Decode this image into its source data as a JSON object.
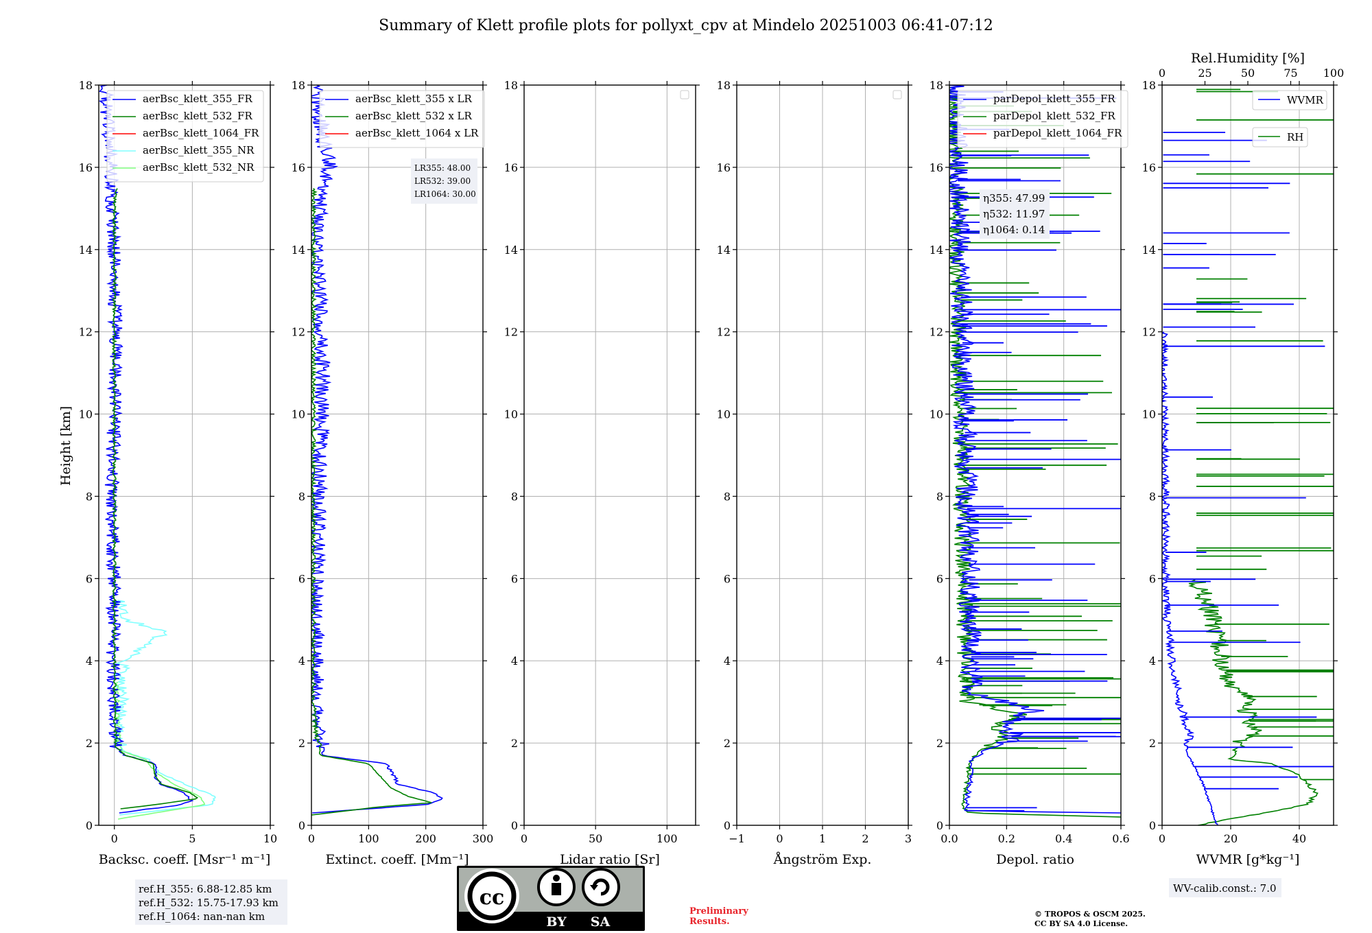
{
  "title": "Summary of Klett profile plots for pollyxt_cpv at Mindelo 20251003 06:41-07:12",
  "y_label": "Height [km]",
  "y_ticks": [
    "0",
    "2",
    "4",
    "6",
    "8",
    "10",
    "12",
    "14",
    "16",
    "18"
  ],
  "colors": {
    "c355": "#0000ff",
    "c532": "#008000",
    "c1064": "#ff0000",
    "c355nr": "#80ffff",
    "c532nr": "#80ff80",
    "wvmr": "#0000ff",
    "rh": "#008000"
  },
  "chart_data": [
    {
      "type": "line",
      "id": "backscatter",
      "xlabel": "Backsc. coeff. [Msr⁻¹ m⁻¹]",
      "xlim": [
        -1,
        10
      ],
      "ylim": [
        0,
        18
      ],
      "x_ticks": [
        0,
        5,
        10
      ],
      "legend": [
        "aerBsc_klett_355_FR",
        "aerBsc_klett_532_FR",
        "aerBsc_klett_1064_FR",
        "aerBsc_klett_355_NR",
        "aerBsc_klett_532_NR"
      ],
      "series": [
        {
          "name": "aerBsc_klett_355_NR",
          "color": "c355nr",
          "profile": [
            [
              0.25,
              0.3
            ],
            [
              0.5,
              6.2
            ],
            [
              0.7,
              6.5
            ],
            [
              1.0,
              4.5
            ],
            [
              1.3,
              2.8
            ],
            [
              1.6,
              2.2
            ],
            [
              1.8,
              0.6
            ],
            [
              2.0,
              0.4
            ],
            [
              2.5,
              0.3
            ],
            [
              3.0,
              0.5
            ],
            [
              3.5,
              0.4
            ],
            [
              4.0,
              0.6
            ],
            [
              4.5,
              2.5
            ],
            [
              4.7,
              3.2
            ],
            [
              5.0,
              0.8
            ],
            [
              5.5,
              0.3
            ]
          ],
          "noise": 0.4
        },
        {
          "name": "aerBsc_klett_532_NR",
          "color": "c532nr",
          "profile": [
            [
              0.15,
              0.2
            ],
            [
              0.5,
              5.8
            ],
            [
              0.7,
              5.5
            ],
            [
              1.0,
              3.8
            ],
            [
              1.3,
              2.6
            ],
            [
              1.6,
              2.0
            ],
            [
              1.8,
              0.5
            ],
            [
              2.0,
              0.3
            ],
            [
              2.5,
              0.2
            ],
            [
              3.0,
              0.2
            ],
            [
              3.5,
              0.2
            ]
          ],
          "noise": 0.15
        },
        {
          "name": "aerBsc_klett_355_FR",
          "color": "c355",
          "profile": [
            [
              0.3,
              0.3
            ],
            [
              0.5,
              4.3
            ],
            [
              0.6,
              4.9
            ],
            [
              0.8,
              4.4
            ],
            [
              1.0,
              3.0
            ],
            [
              1.2,
              2.6
            ],
            [
              1.5,
              2.6
            ],
            [
              1.7,
              0.7
            ],
            [
              1.9,
              0.1
            ],
            [
              2.5,
              0.1
            ],
            [
              4.0,
              -0.1
            ],
            [
              6.0,
              0.0
            ],
            [
              8.0,
              -0.2
            ],
            [
              10.0,
              0.0
            ],
            [
              12.0,
              0.1
            ],
            [
              14.0,
              0.0
            ],
            [
              16.0,
              -0.2
            ],
            [
              17.5,
              -0.5
            ],
            [
              18.0,
              -0.5
            ]
          ],
          "noise": 0.45
        },
        {
          "name": "aerBsc_klett_532_FR",
          "color": "c532",
          "profile": [
            [
              0.4,
              0.4
            ],
            [
              0.5,
              2.6
            ],
            [
              0.65,
              5.4
            ],
            [
              0.8,
              4.8
            ],
            [
              1.0,
              3.0
            ],
            [
              1.2,
              2.6
            ],
            [
              1.5,
              2.5
            ],
            [
              1.7,
              0.7
            ],
            [
              1.9,
              0.1
            ],
            [
              2.5,
              0.05
            ],
            [
              4.0,
              0.0
            ],
            [
              8.0,
              0.0
            ],
            [
              12.0,
              0.0
            ],
            [
              15.0,
              0.0
            ],
            [
              15.5,
              0.1
            ]
          ],
          "noise": 0.1
        }
      ],
      "annotation": [
        "ref.H_355: 6.88-12.85 km",
        "ref.H_532: 15.75-17.93 km",
        "ref.H_1064: nan-nan km"
      ]
    },
    {
      "type": "line",
      "id": "extinction",
      "xlabel": "Extinct. coeff. [Mm⁻¹]",
      "xlim": [
        0,
        300
      ],
      "ylim": [
        0,
        18
      ],
      "x_ticks": [
        0,
        100,
        200,
        300
      ],
      "legend": [
        "aerBsc_klett_355 x LR",
        "aerBsc_klett_532 x LR",
        "aerBsc_klett_1064 x LR"
      ],
      "series": [
        {
          "name": "aerBsc_klett_355 x LR",
          "color": "c355",
          "profile": [
            [
              0.3,
              0
            ],
            [
              0.5,
              200
            ],
            [
              0.65,
              230
            ],
            [
              0.8,
              210
            ],
            [
              1.0,
              150
            ],
            [
              1.2,
              145
            ],
            [
              1.5,
              130
            ],
            [
              1.7,
              20
            ],
            [
              1.9,
              20
            ],
            [
              2.2,
              10
            ],
            [
              3.0,
              8
            ],
            [
              6.0,
              8
            ],
            [
              9.0,
              15
            ],
            [
              11.0,
              20
            ],
            [
              12.5,
              15
            ],
            [
              14.5,
              8
            ],
            [
              16.0,
              30
            ],
            [
              17.5,
              10
            ],
            [
              18.0,
              8
            ]
          ],
          "noise": 14
        },
        {
          "name": "aerBsc_klett_532 x LR",
          "color": "c532",
          "profile": [
            [
              0.25,
              0
            ],
            [
              0.45,
              120
            ],
            [
              0.55,
              210
            ],
            [
              0.7,
              170
            ],
            [
              0.9,
              140
            ],
            [
              1.2,
              120
            ],
            [
              1.5,
              100
            ],
            [
              1.7,
              15
            ],
            [
              1.9,
              15
            ],
            [
              2.2,
              8
            ],
            [
              3.0,
              3
            ],
            [
              8.0,
              3
            ],
            [
              12.0,
              3
            ],
            [
              15.0,
              3
            ],
            [
              15.5,
              5
            ]
          ],
          "noise": 4
        }
      ],
      "annotation": [
        "LR355: 48.00",
        "LR532: 39.00",
        "LR1064: 30.00"
      ]
    },
    {
      "type": "line",
      "id": "lidar-ratio",
      "xlabel": "Lidar ratio [Sr]",
      "xlim": [
        0,
        120
      ],
      "ylim": [
        0,
        18
      ],
      "x_ticks": [
        0,
        50,
        100
      ],
      "legend": [],
      "series": []
    },
    {
      "type": "line",
      "id": "angstrom",
      "xlabel": "Ångström Exp.",
      "xlim": [
        -1,
        3
      ],
      "ylim": [
        0,
        18
      ],
      "x_ticks": [
        -1,
        0,
        1,
        2,
        3
      ],
      "legend": [],
      "series": []
    },
    {
      "type": "line",
      "id": "depol",
      "xlabel": "Depol. ratio",
      "xlim": [
        0,
        0.6
      ],
      "ylim": [
        0,
        18
      ],
      "x_ticks": [
        0.0,
        0.2,
        0.4,
        0.6
      ],
      "legend": [
        "parDepol_klett_355_FR",
        "parDepol_klett_532_FR",
        "parDepol_klett_1064_FR"
      ],
      "series": [
        {
          "name": "parDepol_klett_532_FR",
          "color": "c532",
          "profile": [
            [
              0.2,
              0.6
            ],
            [
              0.3,
              0.06
            ],
            [
              0.5,
              0.05
            ],
            [
              1.0,
              0.06
            ],
            [
              1.5,
              0.07
            ],
            [
              1.8,
              0.1
            ],
            [
              2.1,
              0.2
            ],
            [
              2.4,
              0.15
            ],
            [
              2.7,
              0.25
            ],
            [
              3.0,
              0.06
            ],
            [
              18.0,
              0.01
            ]
          ],
          "noise": 0.03,
          "spikes": 55
        },
        {
          "name": "parDepol_klett_355_FR",
          "color": "c355",
          "profile": [
            [
              0.3,
              0.6
            ],
            [
              0.35,
              0.06
            ],
            [
              0.5,
              0.06
            ],
            [
              1.0,
              0.07
            ],
            [
              1.6,
              0.08
            ],
            [
              1.8,
              0.12
            ],
            [
              2.1,
              0.22
            ],
            [
              2.5,
              0.2
            ],
            [
              2.8,
              0.3
            ],
            [
              3.2,
              0.08
            ],
            [
              18.0,
              0.02
            ]
          ],
          "noise": 0.04,
          "spikes": 60
        }
      ],
      "annotation": [
        "η355: 47.99",
        "η532: 11.97",
        "η1064: 0.14"
      ]
    },
    {
      "type": "line",
      "id": "wvmr",
      "xlabel": "WVMR [g*kg⁻¹]",
      "xlim": [
        0,
        50
      ],
      "ylim": [
        0,
        18
      ],
      "x_ticks": [
        0,
        20,
        40
      ],
      "top_xlabel": "Rel.Humidity [%]",
      "top_xlim": [
        0,
        100
      ],
      "top_ticks": [
        0,
        25,
        50,
        75,
        100
      ],
      "legend": [
        "WVMR",
        "RH"
      ],
      "series": [
        {
          "name": "RH",
          "color": "rh",
          "axis": "top",
          "profile": [
            [
              0.0,
              20
            ],
            [
              0.5,
              85
            ],
            [
              0.8,
              90
            ],
            [
              1.2,
              80
            ],
            [
              1.5,
              65
            ],
            [
              1.6,
              40
            ],
            [
              2.0,
              45
            ],
            [
              2.3,
              55
            ],
            [
              2.6,
              50
            ],
            [
              3.0,
              50
            ],
            [
              3.5,
              40
            ],
            [
              4.0,
              35
            ],
            [
              5.0,
              30
            ],
            [
              6.0,
              20
            ]
          ],
          "noise": 6,
          "spikes": 40
        },
        {
          "name": "WVMR",
          "color": "wvmr",
          "axis": "bottom",
          "profile": [
            [
              0.0,
              16
            ],
            [
              0.5,
              14
            ],
            [
              1.0,
              12
            ],
            [
              1.5,
              9
            ],
            [
              1.8,
              7
            ],
            [
              2.2,
              8
            ],
            [
              3.0,
              5
            ],
            [
              4.0,
              3
            ],
            [
              5.0,
              1.5
            ],
            [
              6.0,
              1
            ],
            [
              8.0,
              1
            ],
            [
              10.0,
              0.5
            ],
            [
              12.0,
              0.3
            ]
          ],
          "noise": 1.2,
          "spikes": 30
        }
      ],
      "annotation": [
        "WV-calib.const.: 7.0"
      ]
    }
  ],
  "footer": {
    "cc_label": "cc",
    "by_label": "BY",
    "sa_label": "SA",
    "preliminary": "Preliminary Results.",
    "copyright_1": "© TROPOS & OSCM 2025.",
    "copyright_2": "CC BY SA 4.0 License."
  }
}
